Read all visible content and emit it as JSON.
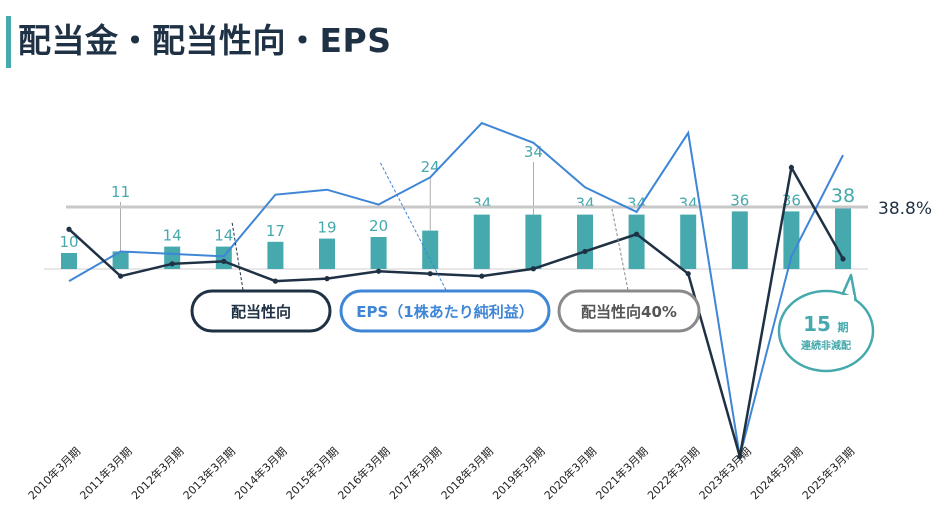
{
  "header": {
    "title": "配当金・配当性向・EPS"
  },
  "chart_data": {
    "type": "bar",
    "categories": [
      "2010年3月期",
      "2011年3月期",
      "2012年3月期",
      "2013年3月期",
      "2014年3月期",
      "2015年3月期",
      "2016年3月期",
      "2017年3月期",
      "2018年3月期",
      "2019年3月期",
      "2020年3月期",
      "2021年3月期",
      "2022年3月期",
      "2023年3月期",
      "2024年3月期",
      "2025年3月期"
    ],
    "series": [
      {
        "name": "配当金",
        "type": "bar",
        "values": [
          10,
          11,
          14,
          14,
          17,
          19,
          20,
          24,
          34,
          34,
          34,
          34,
          34,
          36,
          36,
          38
        ]
      },
      {
        "name": "配当性向",
        "type": "line",
        "values": [
          31,
          12,
          17,
          18,
          10,
          11,
          14,
          13,
          12,
          15,
          22,
          29,
          13,
          -61,
          56,
          19
        ]
      },
      {
        "name": "EPS（1株あたり純利益）",
        "type": "line",
        "values": [
          10,
          22,
          21,
          20,
          45,
          47,
          41,
          52,
          74,
          66,
          48,
          38,
          70,
          -61,
          20,
          61
        ]
      }
    ],
    "reference_line": {
      "name": "配当性向40%",
      "value": 40
    },
    "reference_label": "38.8%",
    "badge": {
      "number": "15",
      "unit": "期",
      "text": "連続非減配"
    },
    "colors": {
      "bar": "#46a9ad",
      "payout_line": "#1f3144",
      "eps_line": "#3f86d6",
      "reference": "#c8c8c8"
    }
  }
}
